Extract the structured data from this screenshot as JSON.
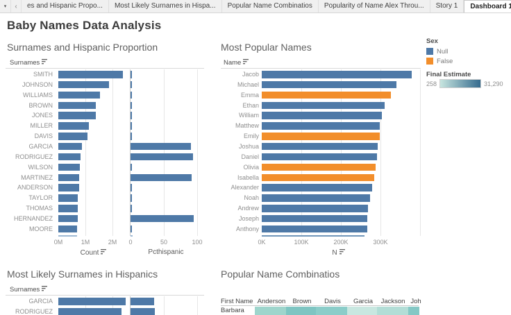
{
  "tab_bar": {
    "dropdown_icon": "caret-down",
    "scroll_left_icon": "chevron-left",
    "scroll_right_icon": "chevron-right",
    "tabs": [
      {
        "label": "es and Hispanic Propo...",
        "active": false
      },
      {
        "label": "Most Likely Surnames in Hispa...",
        "active": false
      },
      {
        "label": "Popular Name Combinatios",
        "active": false
      },
      {
        "label": "Popularity of Name Alex Throu...",
        "active": false
      },
      {
        "label": "Story 1",
        "active": false
      },
      {
        "label": "Dashboard 1",
        "active": true
      }
    ]
  },
  "page_title": "Baby Names Data Analysis",
  "colors": {
    "bar_blue": "#4e79a7",
    "bar_orange": "#f28e2b",
    "gridline": "#e6e6e6",
    "pane_divider": "#c9c9c9"
  },
  "legend": {
    "sex": {
      "title": "Sex",
      "items": [
        {
          "label": "Null",
          "color": "#4e79a7"
        },
        {
          "label": "False",
          "color": "#f28e2b"
        }
      ]
    },
    "final_estimate": {
      "title": "Final Estimate",
      "min_label": "258",
      "max_label": "31,290",
      "gradient_start": "#c7e5df",
      "gradient_end": "#356b8e"
    }
  },
  "chart_data": [
    {
      "type": "bar",
      "title": "Surnames and Hispanic Proportion",
      "row_field": "Surnames",
      "categories": [
        "SMITH",
        "JOHNSON",
        "WILLIAMS",
        "BROWN",
        "JONES",
        "MILLER",
        "DAVIS",
        "GARCIA",
        "RODRIGUEZ",
        "WILSON",
        "MARTINEZ",
        "ANDERSON",
        "TAYLOR",
        "THOMAS",
        "HERNANDEZ",
        "MOORE"
      ],
      "series": [
        {
          "name": "Count",
          "axis_title": "Count",
          "ticks": [
            "0M",
            "1M",
            "2M"
          ],
          "max": 2600000,
          "values": [
            2376206,
            1857160,
            1534042,
            1380145,
            1362755,
            1127803,
            1072335,
            858289,
            804240,
            783051,
            775072,
            762394,
            720370,
            710696,
            706372,
            698671
          ]
        },
        {
          "name": "Pcthispanic",
          "axis_title": "Pcthispanic",
          "ticks": [
            "0",
            "50",
            "100"
          ],
          "max": 106,
          "values": [
            1.6,
            1.5,
            1.6,
            1.6,
            1.4,
            1.3,
            1.7,
            90.8,
            93.8,
            1.7,
            91.7,
            1.6,
            1.6,
            1.6,
            94.9,
            1.7
          ]
        }
      ],
      "clipped_next_row": true
    },
    {
      "type": "bar",
      "title": "Most Popular Names",
      "row_field": "Name",
      "categories": [
        "Jacob",
        "Michael",
        "Emma",
        "Ethan",
        "William",
        "Matthew",
        "Emily",
        "Joshua",
        "Daniel",
        "Olivia",
        "Isabella",
        "Alexander",
        "Noah",
        "Andrew",
        "Joseph",
        "Anthony"
      ],
      "values": [
        370000,
        333000,
        319000,
        304000,
        297000,
        291000,
        291000,
        287000,
        284000,
        282000,
        277000,
        272000,
        267000,
        262000,
        261000,
        260000
      ],
      "sex": [
        "Null",
        "Null",
        "False",
        "Null",
        "Null",
        "Null",
        "False",
        "Null",
        "Null",
        "False",
        "False",
        "Null",
        "Null",
        "Null",
        "Null",
        "Null"
      ],
      "axis_title": "N",
      "ticks": [
        "0K",
        "100K",
        "200K",
        "300K"
      ],
      "max": 391000,
      "clipped_next_row": true
    },
    {
      "type": "bar",
      "title": "Most Likely Surnames in Hispanics",
      "row_field": "Surnames",
      "categories": [
        "GARCIA",
        "RODRIGUEZ"
      ],
      "series": [
        {
          "name": "Count",
          "max": 900000,
          "values": [
            858289,
            804240
          ]
        },
        {
          "name": "Pcthispanic",
          "max": 270,
          "values": [
            90.8,
            93.8
          ]
        }
      ],
      "clipped": true
    },
    {
      "type": "heatmap",
      "title": "Popular Name Combinatios",
      "row_field": "First Name",
      "columns": [
        "Anderson",
        "Brown",
        "Davis",
        "Garcia",
        "Jackson",
        "Joh"
      ],
      "rows": [
        {
          "label": "Barbara",
          "cell_colors": [
            "#9ed5cc",
            "#7ec5c2",
            "#8bcdc9",
            "#c8e7e0",
            "#b2ddd6",
            "#84c8c5"
          ]
        }
      ],
      "clipped": true
    }
  ]
}
